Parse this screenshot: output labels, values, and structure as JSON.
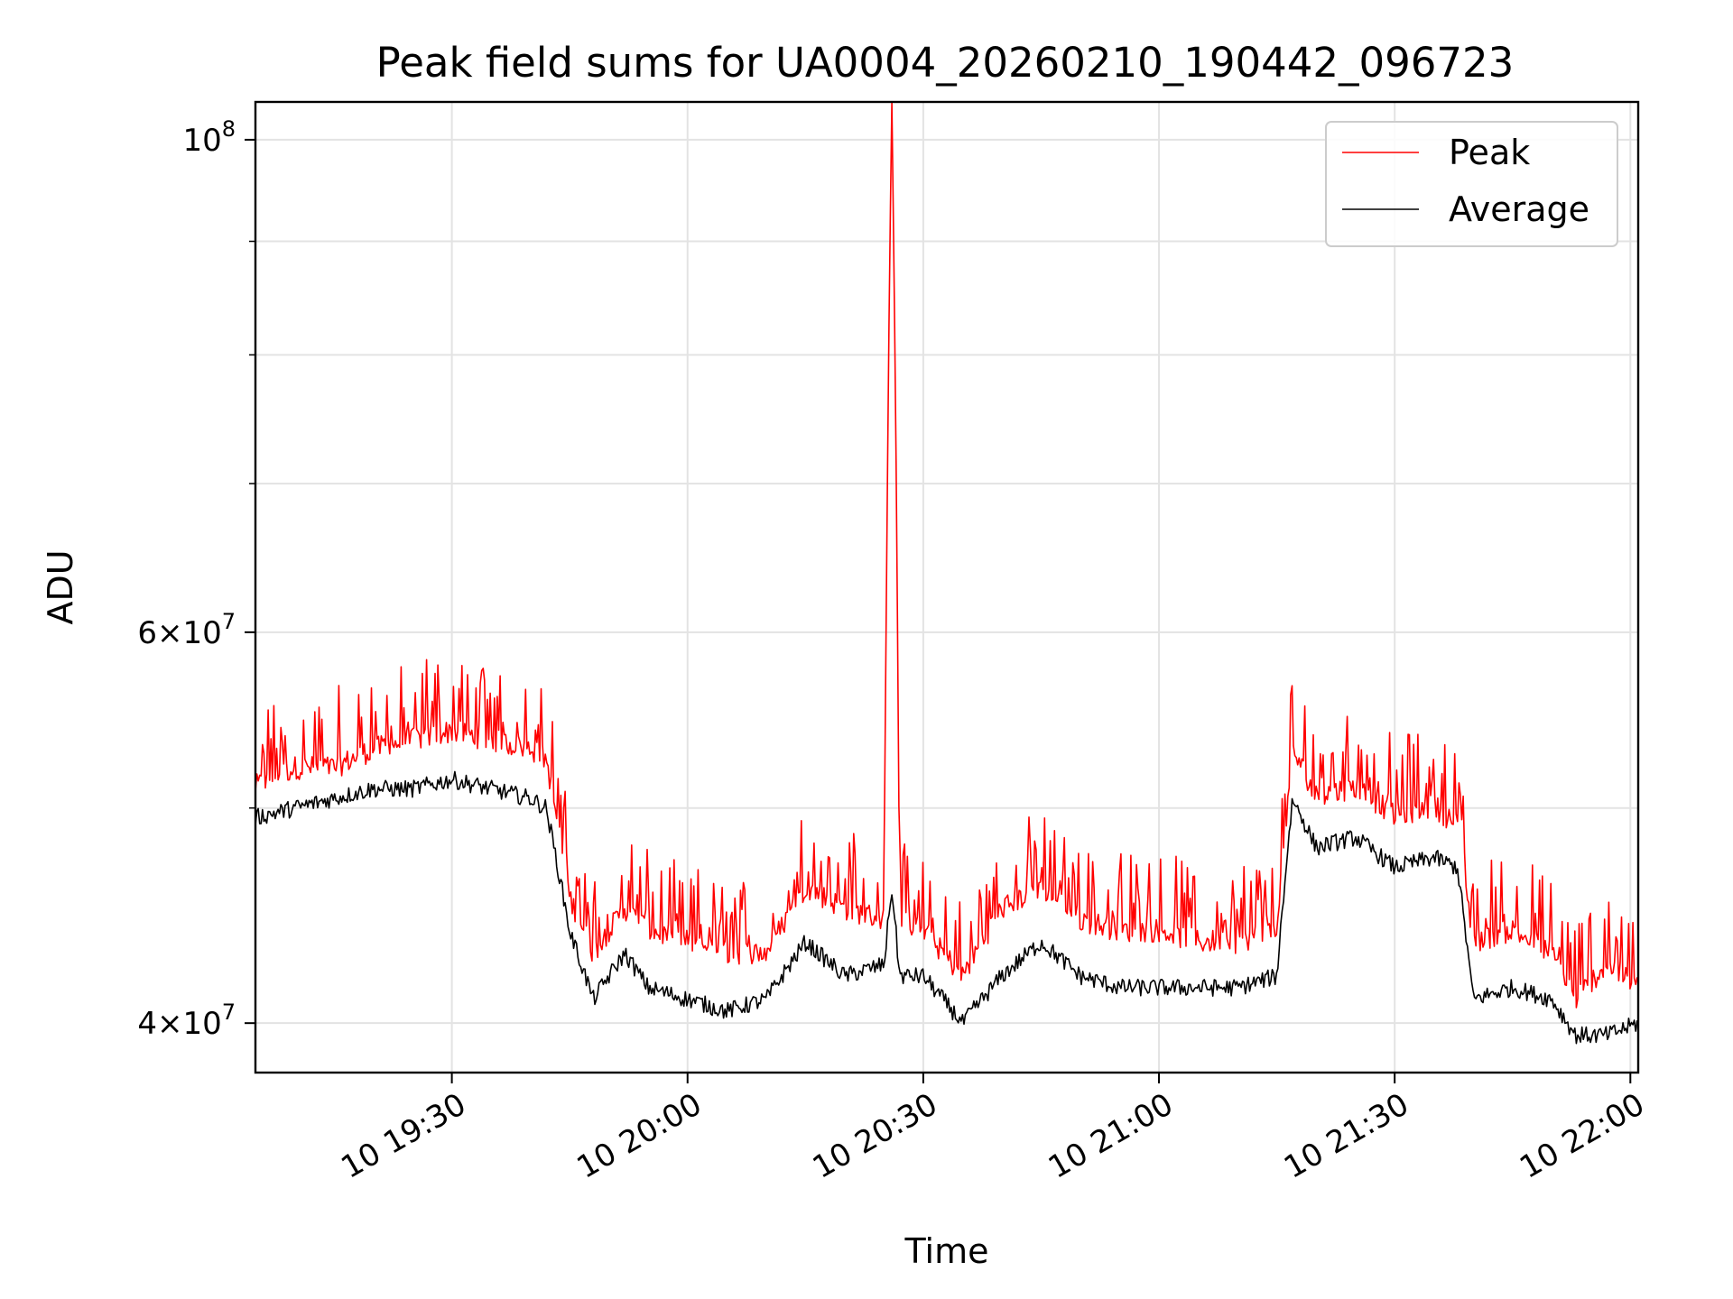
{
  "chart_data": {
    "type": "line",
    "title": "Peak field sums for UA0004_20260210_190442_096723",
    "xlabel": "Time",
    "ylabel": "ADU",
    "y_scale": "log",
    "ylim": [
      38000000,
      104000000
    ],
    "xlim": [
      "2026-02-10 19:05",
      "2026-02-10 22:01"
    ],
    "x_ticks": [
      {
        "t": "2026-02-10 19:30",
        "label": "10 19:30"
      },
      {
        "t": "2026-02-10 20:00",
        "label": "10 20:00"
      },
      {
        "t": "2026-02-10 20:30",
        "label": "10 20:30"
      },
      {
        "t": "2026-02-10 21:00",
        "label": "10 21:00"
      },
      {
        "t": "2026-02-10 21:30",
        "label": "10 21:30"
      },
      {
        "t": "2026-02-10 22:00",
        "label": "10 22:00"
      }
    ],
    "y_major_ticks": [
      {
        "v": 40000000,
        "base": "4×10",
        "exp": "7"
      },
      {
        "v": 60000000,
        "base": "6×10",
        "exp": "7"
      },
      {
        "v": 100000000,
        "base": "10",
        "exp": "8"
      }
    ],
    "y_minor_gridlines": [
      50000000,
      70000000,
      80000000,
      90000000
    ],
    "grid": true,
    "legend_position": "top-right",
    "series": [
      {
        "name": "Peak",
        "color": "#ff0000",
        "points": [
          [
            "2026-02-10 19:05",
            50500000
          ],
          [
            "2026-02-10 19:10",
            51500000
          ],
          [
            "2026-02-10 19:15",
            51500000
          ],
          [
            "2026-02-10 19:20",
            52500000
          ],
          [
            "2026-02-10 19:25",
            53000000
          ],
          [
            "2026-02-10 19:30",
            53500000
          ],
          [
            "2026-02-10 19:35",
            53000000
          ],
          [
            "2026-02-10 19:40",
            52500000
          ],
          [
            "2026-02-10 19:42",
            52000000
          ],
          [
            "2026-02-10 19:45",
            45000000
          ],
          [
            "2026-02-10 19:48",
            42500000
          ],
          [
            "2026-02-10 19:52",
            44500000
          ],
          [
            "2026-02-10 19:55",
            43500000
          ],
          [
            "2026-02-10 20:00",
            43000000
          ],
          [
            "2026-02-10 20:05",
            42500000
          ],
          [
            "2026-02-10 20:10",
            42500000
          ],
          [
            "2026-02-10 20:15",
            45500000
          ],
          [
            "2026-02-10 20:20",
            44500000
          ],
          [
            "2026-02-10 20:25",
            44000000
          ],
          [
            "2026-02-10 20:26",
            104000000
          ],
          [
            "2026-02-10 20:27",
            44000000
          ],
          [
            "2026-02-10 20:30",
            43500000
          ],
          [
            "2026-02-10 20:35",
            41500000
          ],
          [
            "2026-02-10 20:40",
            44500000
          ],
          [
            "2026-02-10 20:45",
            45500000
          ],
          [
            "2026-02-10 20:50",
            44000000
          ],
          [
            "2026-02-10 20:55",
            43500000
          ],
          [
            "2026-02-10 21:00",
            43500000
          ],
          [
            "2026-02-10 21:05",
            43000000
          ],
          [
            "2026-02-10 21:10",
            43000000
          ],
          [
            "2026-02-10 21:15",
            43500000
          ],
          [
            "2026-02-10 21:17",
            52500000
          ],
          [
            "2026-02-10 21:20",
            50000000
          ],
          [
            "2026-02-10 21:25",
            50500000
          ],
          [
            "2026-02-10 21:30",
            49000000
          ],
          [
            "2026-02-10 21:35",
            49500000
          ],
          [
            "2026-02-10 21:38",
            48500000
          ],
          [
            "2026-02-10 21:40",
            43000000
          ],
          [
            "2026-02-10 21:45",
            43500000
          ],
          [
            "2026-02-10 21:50",
            42500000
          ],
          [
            "2026-02-10 21:53",
            40500000
          ],
          [
            "2026-02-10 21:57",
            42000000
          ],
          [
            "2026-02-10 22:01",
            41000000
          ]
        ]
      },
      {
        "name": "Average",
        "color": "#000000",
        "points": [
          [
            "2026-02-10 19:05",
            49500000
          ],
          [
            "2026-02-10 19:10",
            50000000
          ],
          [
            "2026-02-10 19:15",
            50500000
          ],
          [
            "2026-02-10 19:20",
            51000000
          ],
          [
            "2026-02-10 19:25",
            51000000
          ],
          [
            "2026-02-10 19:30",
            51500000
          ],
          [
            "2026-02-10 19:35",
            51000000
          ],
          [
            "2026-02-10 19:40",
            50500000
          ],
          [
            "2026-02-10 19:42",
            50000000
          ],
          [
            "2026-02-10 19:45",
            44000000
          ],
          [
            "2026-02-10 19:48",
            41000000
          ],
          [
            "2026-02-10 19:52",
            43000000
          ],
          [
            "2026-02-10 19:55",
            41500000
          ],
          [
            "2026-02-10 20:00",
            41000000
          ],
          [
            "2026-02-10 20:05",
            40500000
          ],
          [
            "2026-02-10 20:10",
            41000000
          ],
          [
            "2026-02-10 20:15",
            43500000
          ],
          [
            "2026-02-10 20:20",
            42000000
          ],
          [
            "2026-02-10 20:25",
            42500000
          ],
          [
            "2026-02-10 20:26",
            46000000
          ],
          [
            "2026-02-10 20:27",
            42000000
          ],
          [
            "2026-02-10 20:30",
            42000000
          ],
          [
            "2026-02-10 20:35",
            40000000
          ],
          [
            "2026-02-10 20:40",
            42000000
          ],
          [
            "2026-02-10 20:45",
            43500000
          ],
          [
            "2026-02-10 20:50",
            42000000
          ],
          [
            "2026-02-10 20:55",
            41500000
          ],
          [
            "2026-02-10 21:00",
            41500000
          ],
          [
            "2026-02-10 21:05",
            41500000
          ],
          [
            "2026-02-10 21:10",
            41500000
          ],
          [
            "2026-02-10 21:15",
            42000000
          ],
          [
            "2026-02-10 21:17",
            50500000
          ],
          [
            "2026-02-10 21:20",
            48000000
          ],
          [
            "2026-02-10 21:25",
            48500000
          ],
          [
            "2026-02-10 21:30",
            47000000
          ],
          [
            "2026-02-10 21:35",
            47500000
          ],
          [
            "2026-02-10 21:38",
            47000000
          ],
          [
            "2026-02-10 21:40",
            41000000
          ],
          [
            "2026-02-10 21:45",
            41500000
          ],
          [
            "2026-02-10 21:50",
            41000000
          ],
          [
            "2026-02-10 21:53",
            39500000
          ],
          [
            "2026-02-10 21:57",
            39500000
          ],
          [
            "2026-02-10 22:01",
            40000000
          ]
        ]
      }
    ]
  }
}
